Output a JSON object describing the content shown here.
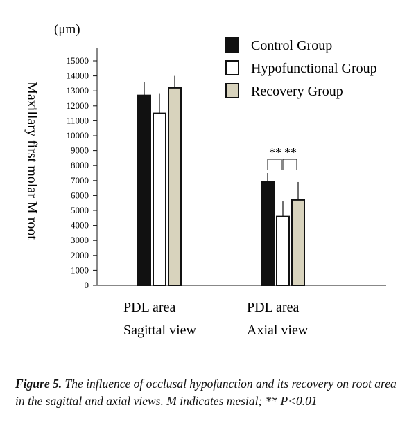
{
  "chart_data": {
    "type": "bar",
    "y_label": "Maxillary first molar M root",
    "unit": "(μm)",
    "categories": [
      [
        "PDL area",
        "Sagittal view"
      ],
      [
        "PDL area",
        "Axial view"
      ]
    ],
    "series": [
      {
        "name": "Control Group",
        "color": "#111111",
        "values": [
          12700,
          6900
        ],
        "errors": [
          900,
          600
        ]
      },
      {
        "name": "Hypofunctional Group",
        "color": "#ffffff",
        "values": [
          11500,
          4600
        ],
        "errors": [
          1300,
          1000
        ]
      },
      {
        "name": "Recovery Group",
        "color": "#d8d3bd",
        "values": [
          13200,
          5700
        ],
        "errors": [
          800,
          1200
        ]
      }
    ],
    "annotations": [
      "**",
      "**"
    ],
    "ylim": [
      0,
      16000
    ],
    "yticks": [
      0,
      1000,
      2000,
      3000,
      4000,
      5000,
      6000,
      7000,
      8000,
      9000,
      10000,
      11000,
      12000,
      13000,
      14000,
      15000
    ]
  },
  "caption": {
    "label": "Figure 5.",
    "lines": [
      "The influence of occlusal hypofunction and its",
      "recovery on root area in the sagittal and axial views. M",
      "indicates mesial; ** P<0.01"
    ]
  }
}
